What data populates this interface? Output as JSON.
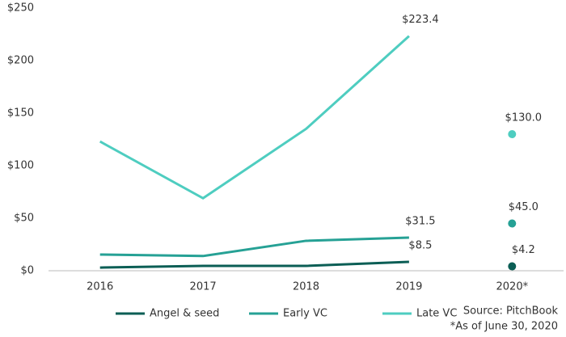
{
  "chart_data": {
    "type": "line",
    "categories": [
      "2016",
      "2017",
      "2018",
      "2019",
      "2020*"
    ],
    "series": [
      {
        "name": "Angel & seed",
        "color": "#0b5e55",
        "values": [
          3,
          4.6,
          4.6,
          8.5,
          4.2
        ],
        "value_labels": [
          null,
          null,
          null,
          "$8.5",
          "$4.2"
        ]
      },
      {
        "name": "Early VC",
        "color": "#26a195",
        "values": [
          15.4,
          14,
          28.5,
          31.5,
          45
        ],
        "value_labels": [
          null,
          null,
          null,
          "$31.5",
          "$45.0"
        ]
      },
      {
        "name": "Late VC",
        "color": "#4ecdc0",
        "values": [
          123,
          69,
          135,
          223.4,
          130
        ],
        "value_labels": [
          null,
          null,
          null,
          "$223.4",
          "$130.0"
        ]
      }
    ],
    "ylim": [
      0,
      250
    ],
    "yticks": [
      {
        "value": 0,
        "label": "$0"
      },
      {
        "value": 50,
        "label": "$50"
      },
      {
        "value": 100,
        "label": "$100"
      },
      {
        "value": 150,
        "label": "$150"
      },
      {
        "value": 200,
        "label": "$200"
      },
      {
        "value": 250,
        "label": "$250"
      }
    ],
    "source": "Source: PitchBook",
    "footnote": "*As of June 30, 2020"
  }
}
